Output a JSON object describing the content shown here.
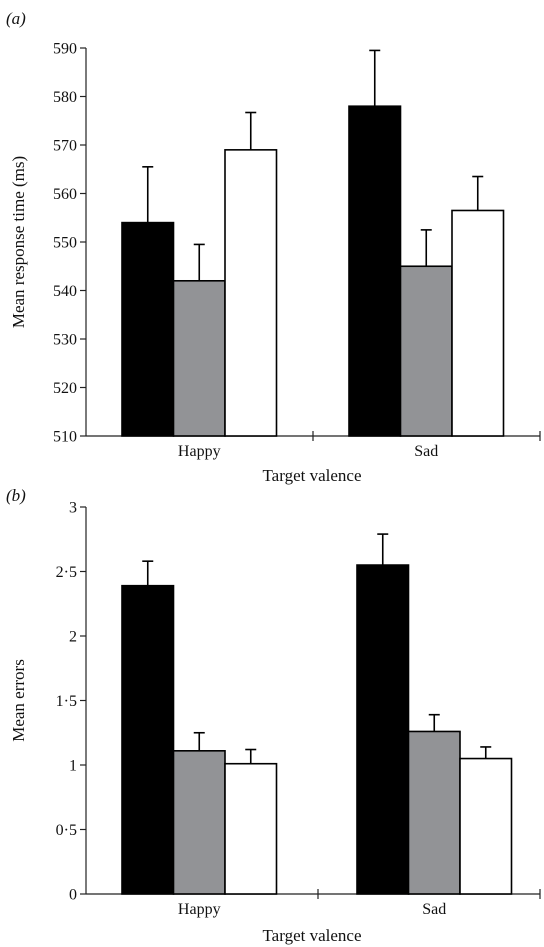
{
  "chart_data": [
    {
      "panel": "(a)",
      "type": "bar",
      "categories": [
        "Happy",
        "Sad"
      ],
      "series": [
        {
          "color": "#000000",
          "values": [
            554,
            578
          ],
          "errors": [
            11.5,
            11.5
          ]
        },
        {
          "color": "#929396",
          "values": [
            542,
            545
          ],
          "errors": [
            7.5,
            7.5
          ]
        },
        {
          "color": "#ffffff",
          "values": [
            569,
            556.5
          ],
          "errors": [
            7.7,
            7.0
          ]
        }
      ],
      "xlabel": "Target valence",
      "ylabel": "Mean response time (ms)",
      "ylim": [
        510,
        590
      ],
      "yticks": [
        "510",
        "520",
        "530",
        "540",
        "550",
        "560",
        "570",
        "580",
        "590"
      ],
      "ytick_values": [
        510,
        520,
        530,
        540,
        550,
        560,
        570,
        580,
        590
      ],
      "grid": false,
      "legend": "none"
    },
    {
      "panel": "(b)",
      "type": "bar",
      "categories": [
        "Happy",
        "Sad"
      ],
      "series": [
        {
          "color": "#000000",
          "values": [
            2.39,
            2.55
          ],
          "errors": [
            0.19,
            0.24
          ]
        },
        {
          "color": "#929396",
          "values": [
            1.11,
            1.26
          ],
          "errors": [
            0.14,
            0.13
          ]
        },
        {
          "color": "#ffffff",
          "values": [
            1.01,
            1.05
          ],
          "errors": [
            0.11,
            0.09
          ]
        }
      ],
      "xlabel": "Target valence",
      "ylabel": "Mean errors",
      "ylim": [
        0,
        3
      ],
      "yticks": [
        "0",
        "0·5",
        "1",
        "1·5",
        "2",
        "2·5",
        "3"
      ],
      "ytick_values": [
        0,
        0.5,
        1,
        1.5,
        2,
        2.5,
        3
      ],
      "grid": false,
      "legend": "none"
    }
  ]
}
